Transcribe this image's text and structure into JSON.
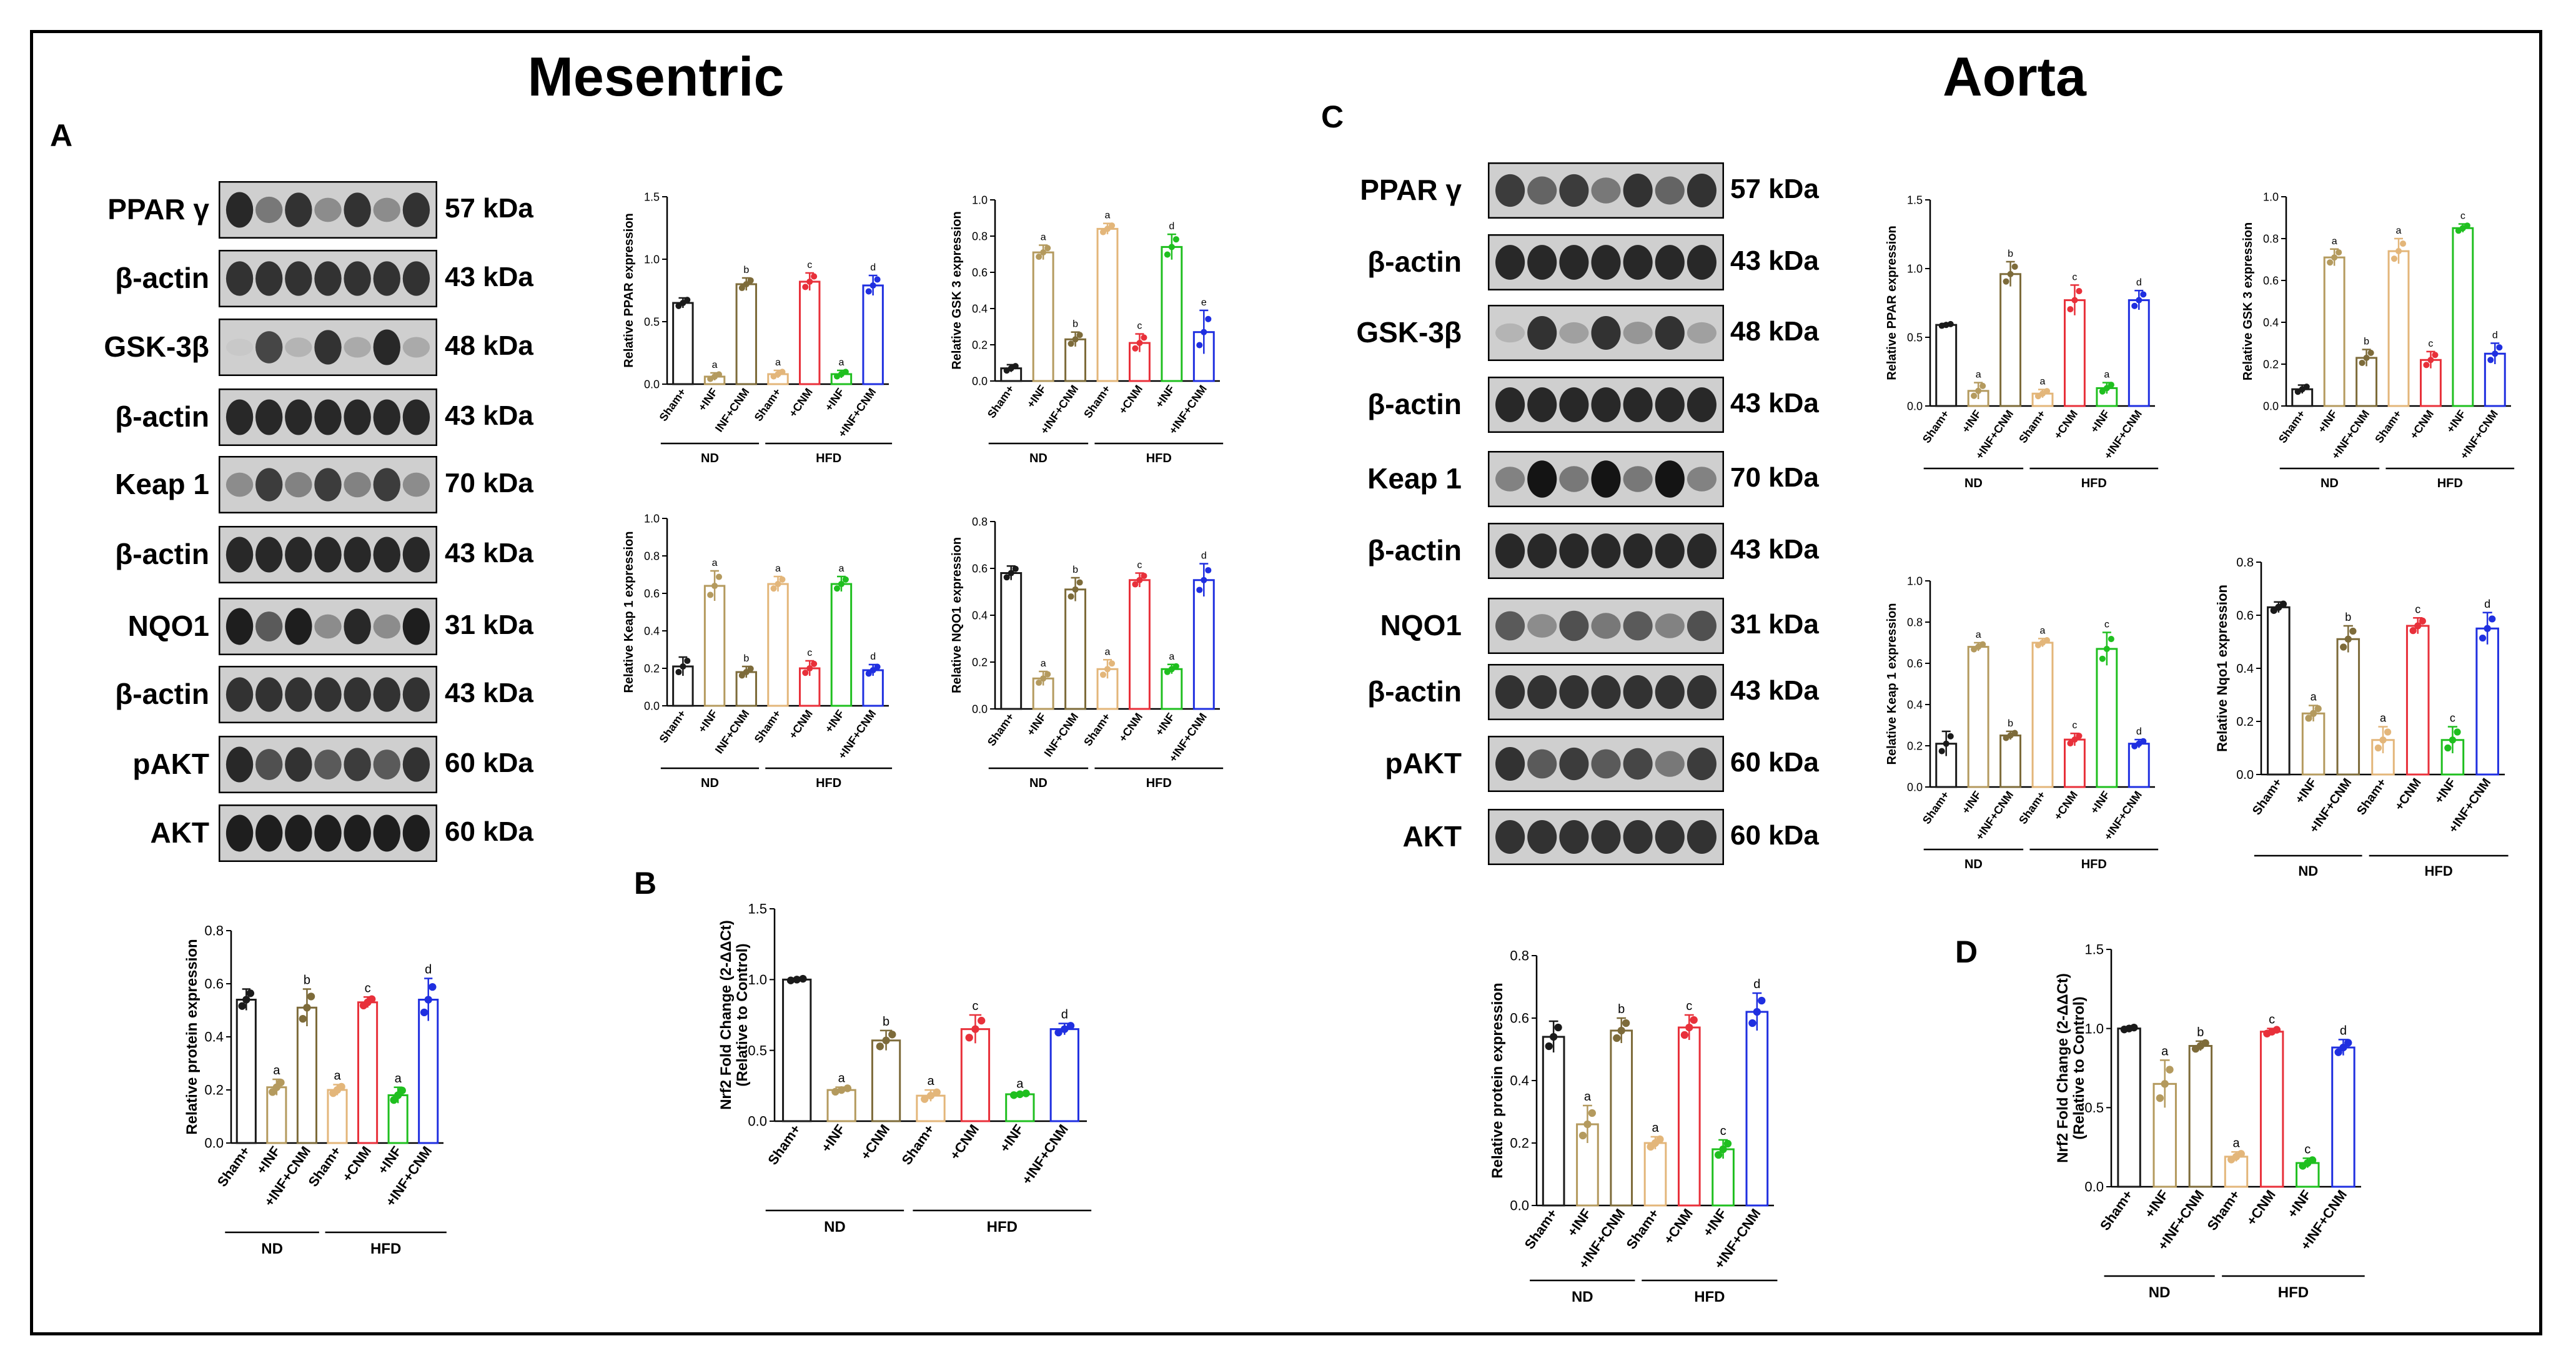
{
  "titles": {
    "mesentric": "Mesentric",
    "aorta": "Aorta"
  },
  "panel_labels": {
    "A": "A",
    "B": "B",
    "C": "C",
    "D": "D"
  },
  "colors": {
    "sham_nd": "#1a1a1a",
    "inf_nd": "#b49a5e",
    "infcnm_nd": "#7d6b3a",
    "sham_hfd": "#e3b67a",
    "cnm_hfd": "#e8303a",
    "inf_hfd": "#1fbf1f",
    "infcnm_hfd": "#1f2fe0"
  },
  "blots_mesentric": [
    {
      "name": "PPAR γ",
      "kda": "57 kDa",
      "pattern": [
        0.85,
        0.45,
        0.8,
        0.35,
        0.8,
        0.35,
        0.8
      ]
    },
    {
      "name": "β-actin",
      "kda": "43 kDa",
      "pattern": [
        0.8,
        0.8,
        0.8,
        0.8,
        0.8,
        0.8,
        0.8
      ]
    },
    {
      "name": "GSK-3β",
      "kda": "48 kDa",
      "pattern": [
        0.05,
        0.7,
        0.15,
        0.8,
        0.2,
        0.85,
        0.2
      ]
    },
    {
      "name": "β-actin",
      "kda": "43 kDa",
      "pattern": [
        0.85,
        0.85,
        0.85,
        0.85,
        0.85,
        0.85,
        0.85
      ]
    },
    {
      "name": "Keap 1",
      "kda": "70 kDa",
      "pattern": [
        0.35,
        0.75,
        0.4,
        0.75,
        0.4,
        0.75,
        0.35
      ]
    },
    {
      "name": "β-actin",
      "kda": "43 kDa",
      "pattern": [
        0.85,
        0.85,
        0.85,
        0.85,
        0.85,
        0.85,
        0.85
      ]
    },
    {
      "name": "NQO1",
      "kda": "31 kDa",
      "pattern": [
        0.9,
        0.6,
        0.9,
        0.35,
        0.85,
        0.35,
        0.9
      ]
    },
    {
      "name": "β-actin",
      "kda": "43 kDa",
      "pattern": [
        0.8,
        0.8,
        0.8,
        0.8,
        0.8,
        0.8,
        0.8
      ]
    },
    {
      "name": "pAKT",
      "kda": "60 kDa",
      "pattern": [
        0.85,
        0.65,
        0.8,
        0.6,
        0.75,
        0.6,
        0.8
      ]
    },
    {
      "name": "AKT",
      "kda": "60 kDa",
      "pattern": [
        0.9,
        0.9,
        0.9,
        0.9,
        0.9,
        0.9,
        0.9
      ]
    }
  ],
  "blots_aorta": [
    {
      "name": "PPAR γ",
      "kda": "57 kDa",
      "pattern": [
        0.75,
        0.55,
        0.75,
        0.45,
        0.8,
        0.55,
        0.8
      ]
    },
    {
      "name": "β-actin",
      "kda": "43 kDa",
      "pattern": [
        0.85,
        0.85,
        0.85,
        0.85,
        0.85,
        0.85,
        0.85
      ]
    },
    {
      "name": "GSK-3β",
      "kda": "48 kDa",
      "pattern": [
        0.15,
        0.8,
        0.25,
        0.8,
        0.3,
        0.8,
        0.25
      ]
    },
    {
      "name": "β-actin",
      "kda": "43 kDa",
      "pattern": [
        0.85,
        0.85,
        0.85,
        0.85,
        0.85,
        0.85,
        0.85
      ]
    },
    {
      "name": "Keap 1",
      "kda": "70 kDa",
      "pattern": [
        0.4,
        0.95,
        0.45,
        0.95,
        0.45,
        0.95,
        0.4
      ]
    },
    {
      "name": "β-actin",
      "kda": "43 kDa",
      "pattern": [
        0.85,
        0.85,
        0.85,
        0.85,
        0.85,
        0.85,
        0.85
      ]
    },
    {
      "name": "NQO1",
      "kda": "31 kDa",
      "pattern": [
        0.6,
        0.35,
        0.65,
        0.45,
        0.6,
        0.4,
        0.65
      ]
    },
    {
      "name": "β-actin",
      "kda": "43 kDa",
      "pattern": [
        0.8,
        0.8,
        0.8,
        0.8,
        0.8,
        0.8,
        0.8
      ]
    },
    {
      "name": "pAKT",
      "kda": "60 kDa",
      "pattern": [
        0.8,
        0.6,
        0.75,
        0.6,
        0.7,
        0.45,
        0.75
      ]
    },
    {
      "name": "AKT",
      "kda": "60 kDa",
      "pattern": [
        0.8,
        0.8,
        0.8,
        0.8,
        0.8,
        0.8,
        0.8
      ]
    }
  ],
  "chart_data": [
    {
      "id": "m_ppar",
      "type": "bar",
      "ylabel": "Relative PPAR expression",
      "ylim": [
        0,
        1.5
      ],
      "yticks": [
        "0.0",
        "0.5",
        "1.0",
        "1.5"
      ],
      "tickvals": [
        0,
        0.5,
        1,
        1.5
      ],
      "categories": [
        "Sham+",
        "+INF",
        "INF+CNM",
        "Sham+",
        "+CNM",
        "+INF",
        "+INF+CNM"
      ],
      "values": [
        0.65,
        0.06,
        0.8,
        0.08,
        0.82,
        0.08,
        0.79
      ],
      "errors": [
        0.04,
        0.03,
        0.05,
        0.03,
        0.07,
        0.03,
        0.08
      ],
      "letters": [
        "",
        "a",
        "b",
        "a",
        "c",
        "a",
        "d"
      ],
      "groups": [
        "ND",
        "HFD"
      ]
    },
    {
      "id": "m_gsk",
      "type": "bar",
      "ylabel": "Relative GSK 3 expression",
      "ylim": [
        0,
        1.0
      ],
      "yticks": [
        "0.0",
        "0.2",
        "0.4",
        "0.6",
        "0.8",
        "1.0"
      ],
      "tickvals": [
        0,
        0.2,
        0.4,
        0.6,
        0.8,
        1.0
      ],
      "categories": [
        "Sham+",
        "+INF",
        "+INF+CNM",
        "Sham+",
        "+CNM",
        "+INF",
        "+INF+CNM"
      ],
      "values": [
        0.07,
        0.71,
        0.23,
        0.84,
        0.21,
        0.74,
        0.27
      ],
      "errors": [
        0.02,
        0.04,
        0.04,
        0.03,
        0.05,
        0.07,
        0.12
      ],
      "letters": [
        "",
        "a",
        "b",
        "a",
        "c",
        "d",
        "e"
      ],
      "groups": [
        "ND",
        "HFD"
      ]
    },
    {
      "id": "m_keap",
      "type": "bar",
      "ylabel": "Relative Keap 1 expression",
      "ylim": [
        0,
        1.0
      ],
      "yticks": [
        "0.0",
        "0.2",
        "0.4",
        "0.6",
        "0.8",
        "1.0"
      ],
      "tickvals": [
        0,
        0.2,
        0.4,
        0.6,
        0.8,
        1.0
      ],
      "categories": [
        "Sham+",
        "+INF",
        "INF+CNM",
        "Sham+",
        "+CNM",
        "+INF",
        "+INF+CNM"
      ],
      "values": [
        0.21,
        0.64,
        0.18,
        0.65,
        0.2,
        0.65,
        0.19
      ],
      "errors": [
        0.05,
        0.08,
        0.03,
        0.04,
        0.04,
        0.04,
        0.03
      ],
      "letters": [
        "",
        "a",
        "b",
        "a",
        "c",
        "a",
        "d"
      ],
      "groups": [
        "ND",
        "HFD"
      ]
    },
    {
      "id": "m_nqo",
      "type": "bar",
      "ylabel": "Relative NQO1 expression",
      "ylim": [
        0,
        0.8
      ],
      "yticks": [
        "0.0",
        "0.2",
        "0.4",
        "0.6",
        "0.8"
      ],
      "tickvals": [
        0,
        0.2,
        0.4,
        0.6,
        0.8
      ],
      "categories": [
        "Sham+",
        "+INF",
        "INF+CNM",
        "Sham+",
        "+CNM",
        "+INF",
        "+INF+CNM"
      ],
      "values": [
        0.58,
        0.13,
        0.51,
        0.17,
        0.55,
        0.17,
        0.55
      ],
      "errors": [
        0.03,
        0.03,
        0.05,
        0.04,
        0.03,
        0.02,
        0.07
      ],
      "letters": [
        "",
        "a",
        "b",
        "a",
        "c",
        "a",
        "d"
      ],
      "groups": [
        "ND",
        "HFD"
      ]
    },
    {
      "id": "m_prot",
      "type": "bar",
      "ylabel": "Relative protein expression",
      "ylim": [
        0,
        0.8
      ],
      "yticks": [
        "0.0",
        "0.2",
        "0.4",
        "0.6",
        "0.8"
      ],
      "tickvals": [
        0,
        0.2,
        0.4,
        0.6,
        0.8
      ],
      "categories": [
        "Sham+",
        "+INF",
        "+INF+CNM",
        "Sham+",
        "+CNM",
        "+INF",
        "+INF+CNM"
      ],
      "values": [
        0.54,
        0.21,
        0.51,
        0.2,
        0.53,
        0.18,
        0.54
      ],
      "errors": [
        0.04,
        0.03,
        0.07,
        0.02,
        0.02,
        0.03,
        0.08
      ],
      "letters": [
        "",
        "a",
        "b",
        "a",
        "c",
        "a",
        "d"
      ],
      "groups": [
        "ND",
        "HFD"
      ]
    },
    {
      "id": "m_nrf2",
      "type": "bar",
      "ylabel": "Nrf2 Fold Change (2-ΔΔCt)",
      "ylabel2": "(Relative to Control)",
      "ylim": [
        0,
        1.5
      ],
      "yticks": [
        "0.0",
        "0.5",
        "1.0",
        "1.5"
      ],
      "tickvals": [
        0,
        0.5,
        1,
        1.5
      ],
      "categories": [
        "Sham+",
        "+INF",
        "+CNM",
        "Sham+",
        "+CNM",
        "+INF",
        "+INF+CNM"
      ],
      "values": [
        1.0,
        0.22,
        0.57,
        0.18,
        0.65,
        0.19,
        0.65
      ],
      "errors": [
        0.01,
        0.02,
        0.07,
        0.04,
        0.1,
        0.01,
        0.04
      ],
      "letters": [
        "",
        "a",
        "b",
        "a",
        "c",
        "a",
        "d"
      ],
      "groups": [
        "ND",
        "HFD"
      ]
    },
    {
      "id": "a_ppar",
      "type": "bar",
      "ylabel": "Relative PPAR expression",
      "ylim": [
        0,
        1.5
      ],
      "yticks": [
        "0.0",
        "0.5",
        "1.0",
        "1.5"
      ],
      "tickvals": [
        0,
        0.5,
        1,
        1.5
      ],
      "categories": [
        "Sham+",
        "+INF",
        "+INF+CNM",
        "Sham+",
        "+CNM",
        "+INF",
        "+INF+CNM"
      ],
      "values": [
        0.59,
        0.11,
        0.96,
        0.09,
        0.77,
        0.13,
        0.77
      ],
      "errors": [
        0.01,
        0.06,
        0.09,
        0.03,
        0.11,
        0.04,
        0.07
      ],
      "letters": [
        "",
        "a",
        "b",
        "a",
        "c",
        "a",
        "d"
      ],
      "groups": [
        "ND",
        "HFD"
      ]
    },
    {
      "id": "a_gsk",
      "type": "bar",
      "ylabel": "Relative GSK 3 expression",
      "ylim": [
        0,
        1.0
      ],
      "yticks": [
        "0.0",
        "0.2",
        "0.4",
        "0.6",
        "0.8",
        "1.0"
      ],
      "tickvals": [
        0,
        0.2,
        0.4,
        0.6,
        0.8,
        1.0
      ],
      "categories": [
        "Sham+",
        "+INF",
        "+INF+CNM",
        "Sham+",
        "+CNM",
        "+INF",
        "+INF+CNM"
      ],
      "values": [
        0.08,
        0.71,
        0.23,
        0.74,
        0.22,
        0.85,
        0.25
      ],
      "errors": [
        0.02,
        0.04,
        0.04,
        0.06,
        0.04,
        0.02,
        0.05
      ],
      "letters": [
        "",
        "a",
        "b",
        "a",
        "c",
        "c",
        "d"
      ],
      "groups": [
        "ND",
        "HFD"
      ]
    },
    {
      "id": "a_keap",
      "type": "bar",
      "ylabel": "Relative Keap 1 expression",
      "ylim": [
        0,
        1.0
      ],
      "yticks": [
        "0.0",
        "0.2",
        "0.4",
        "0.6",
        "0.8",
        "1.0"
      ],
      "tickvals": [
        0,
        0.2,
        0.4,
        0.6,
        0.8,
        1.0
      ],
      "categories": [
        "Sham+",
        "+INF",
        "+INF+CNM",
        "Sham+",
        "+CNM",
        "+INF",
        "+INF+CNM"
      ],
      "values": [
        0.21,
        0.68,
        0.25,
        0.7,
        0.23,
        0.67,
        0.21
      ],
      "errors": [
        0.06,
        0.02,
        0.02,
        0.02,
        0.03,
        0.08,
        0.02
      ],
      "letters": [
        "",
        "a",
        "b",
        "a",
        "c",
        "c",
        "d"
      ],
      "groups": [
        "ND",
        "HFD"
      ]
    },
    {
      "id": "a_nqo",
      "type": "bar",
      "ylabel": "Relative Nqo1 expression",
      "ylim": [
        0,
        0.8
      ],
      "yticks": [
        "0.0",
        "0.2",
        "0.4",
        "0.6",
        "0.8"
      ],
      "tickvals": [
        0,
        0.2,
        0.4,
        0.6,
        0.8
      ],
      "categories": [
        "Sham+",
        "+INF",
        "+INF+CNM",
        "Sham+",
        "+CNM",
        "+INF",
        "+INF+CNM"
      ],
      "values": [
        0.63,
        0.23,
        0.51,
        0.13,
        0.56,
        0.13,
        0.55
      ],
      "errors": [
        0.02,
        0.03,
        0.05,
        0.05,
        0.03,
        0.05,
        0.06
      ],
      "letters": [
        "",
        "a",
        "b",
        "a",
        "c",
        "c",
        "d"
      ],
      "groups": [
        "ND",
        "HFD"
      ]
    },
    {
      "id": "a_prot",
      "type": "bar",
      "ylabel": "Relative protein expression",
      "ylim": [
        0,
        0.8
      ],
      "yticks": [
        "0.0",
        "0.2",
        "0.4",
        "0.6",
        "0.8"
      ],
      "tickvals": [
        0,
        0.2,
        0.4,
        0.6,
        0.8
      ],
      "categories": [
        "Sham+",
        "+INF",
        "+INF+CNM",
        "Sham+",
        "+CNM",
        "+INF",
        "+INF+CNM"
      ],
      "values": [
        0.54,
        0.26,
        0.56,
        0.2,
        0.57,
        0.18,
        0.62
      ],
      "errors": [
        0.05,
        0.06,
        0.04,
        0.02,
        0.04,
        0.03,
        0.06
      ],
      "letters": [
        "",
        "a",
        "b",
        "a",
        "c",
        "c",
        "d"
      ],
      "groups": [
        "ND",
        "HFD"
      ]
    },
    {
      "id": "a_nrf2",
      "type": "bar",
      "ylabel": "Nrf2 Fold Change (2-ΔΔCt)",
      "ylabel2": "(Relative to Control)",
      "ylim": [
        0,
        1.5
      ],
      "yticks": [
        "0.0",
        "0.5",
        "1.0",
        "1.5"
      ],
      "tickvals": [
        0,
        0.5,
        1,
        1.5
      ],
      "categories": [
        "Sham+",
        "+INF",
        "+INF+CNM",
        "Sham+",
        "+CNM",
        "+INF",
        "+INF+CNM"
      ],
      "values": [
        1.0,
        0.65,
        0.89,
        0.19,
        0.98,
        0.15,
        0.88
      ],
      "errors": [
        0.01,
        0.15,
        0.03,
        0.03,
        0.02,
        0.03,
        0.05
      ],
      "letters": [
        "",
        "a",
        "b",
        "a",
        "c",
        "c",
        "d"
      ],
      "groups": [
        "ND",
        "HFD"
      ]
    }
  ]
}
